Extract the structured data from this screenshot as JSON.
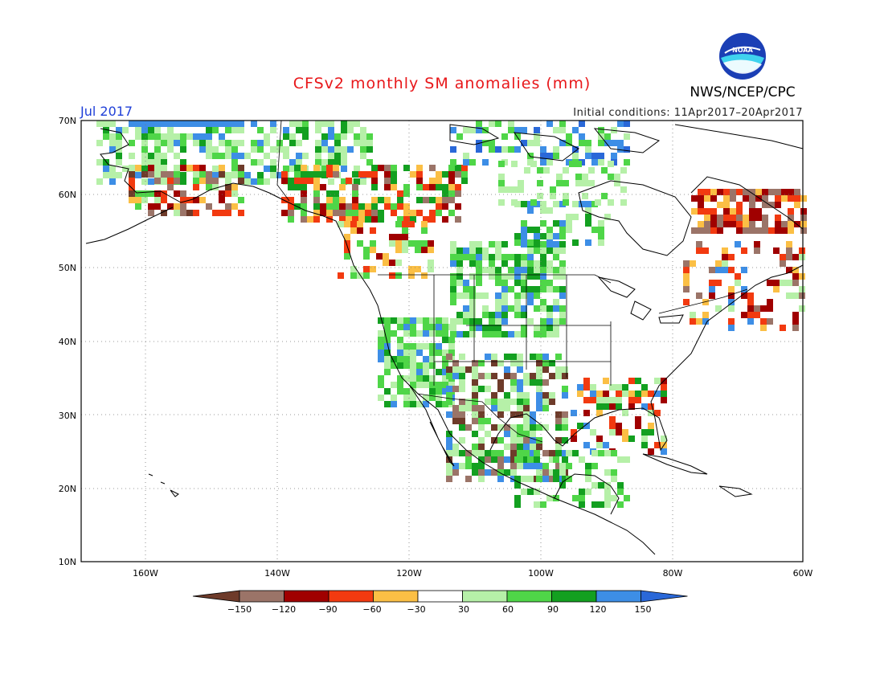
{
  "title": "CFSv2 monthly SM anomalies (mm)",
  "agency": "NWS/NCEP/CPC",
  "logo_text": "NOAA",
  "month": "Jul 2017",
  "initial_conditions": "Initial conditions: 11Apr2017–20Apr2017",
  "lat_ticks": [
    "70N",
    "60N",
    "50N",
    "40N",
    "30N",
    "20N",
    "10N"
  ],
  "lon_ticks": [
    "160W",
    "140W",
    "120W",
    "100W",
    "80W",
    "60W"
  ],
  "colorbar": {
    "labels": [
      "−150",
      "−120",
      "−90",
      "−60",
      "−30",
      "30",
      "60",
      "90",
      "120",
      "150"
    ],
    "colors": [
      "#6e3b2a",
      "#9b7468",
      "#a00000",
      "#f23a10",
      "#fbbf45",
      "#ffffff",
      "#b6f0a8",
      "#4fd648",
      "#13a020",
      "#3d8ee6",
      "#2a68d8"
    ]
  },
  "colors": {
    "title": "#e8171a",
    "month": "#1f3fd8",
    "border": "#000000",
    "grid": "#888888"
  }
}
